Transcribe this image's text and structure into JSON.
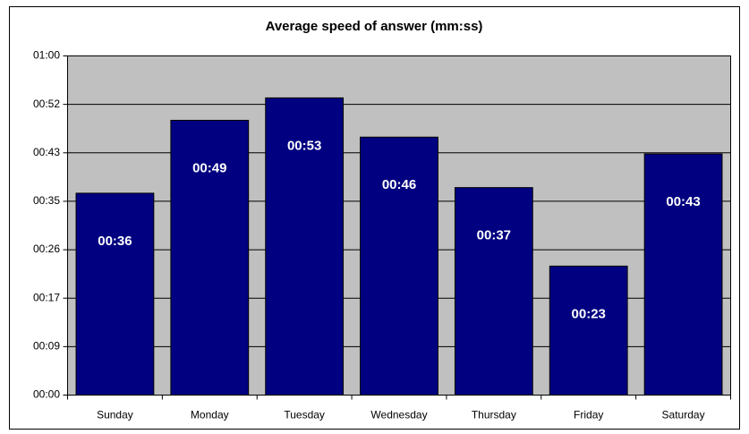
{
  "chart_data": {
    "type": "bar",
    "title": "Average speed of answer (mm:ss)",
    "categories": [
      "Sunday",
      "Monday",
      "Tuesday",
      "Wednesday",
      "Thursday",
      "Friday",
      "Saturday"
    ],
    "values": [
      36,
      49,
      53,
      46,
      37,
      23,
      43
    ],
    "value_labels": [
      "00:36",
      "00:49",
      "00:53",
      "00:46",
      "00:37",
      "00:23",
      "00:43"
    ],
    "color": "#000080",
    "ylim": [
      0,
      60.48
    ],
    "yticks": [
      {
        "value": 0,
        "label": "00:00"
      },
      {
        "value": 8.64,
        "label": "00:09"
      },
      {
        "value": 17.28,
        "label": "00:17"
      },
      {
        "value": 25.92,
        "label": "00:26"
      },
      {
        "value": 34.56,
        "label": "00:35"
      },
      {
        "value": 43.2,
        "label": "00:43"
      },
      {
        "value": 51.84,
        "label": "00:52"
      },
      {
        "value": 60.48,
        "label": "01:00"
      }
    ],
    "grid": true
  }
}
